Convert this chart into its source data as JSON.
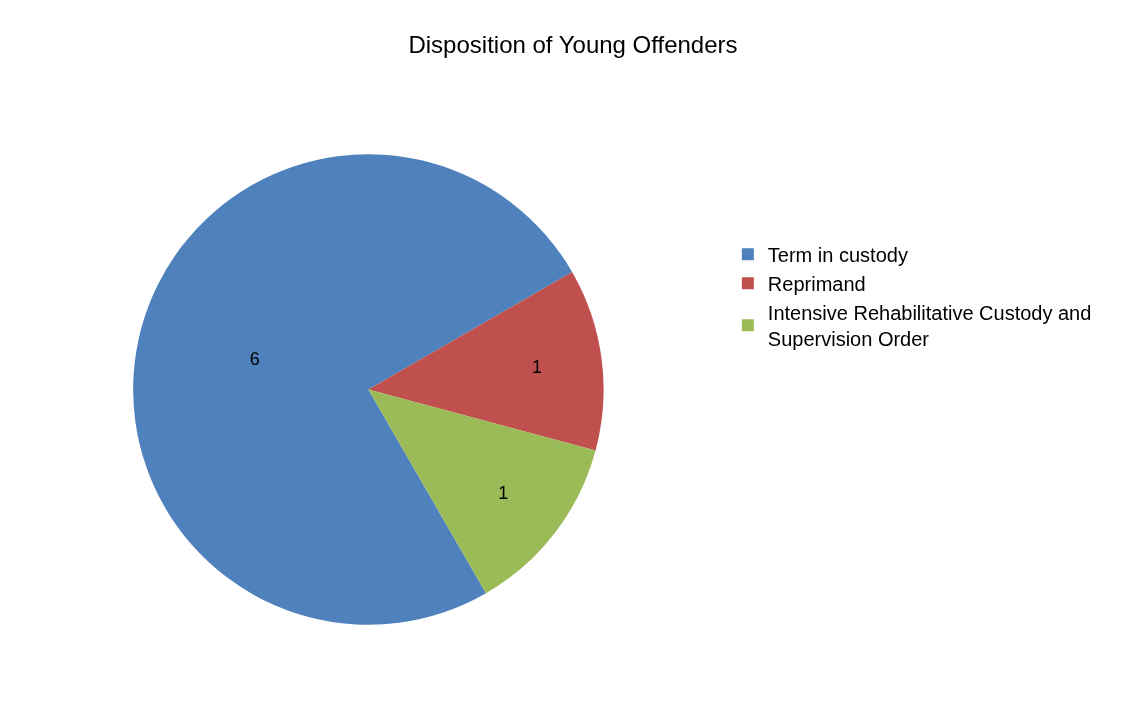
{
  "chart_data": {
    "type": "pie",
    "title": "Disposition of Young Offenders",
    "categories": [
      "Term in custody",
      "Reprimand",
      "Intensive Rehabilitative Custody and Supervision Order"
    ],
    "values": [
      6,
      1,
      1
    ],
    "colors": [
      "#4f81bd",
      "#c0504d",
      "#9bbb59"
    ],
    "data_labels": true,
    "legend": "right"
  }
}
